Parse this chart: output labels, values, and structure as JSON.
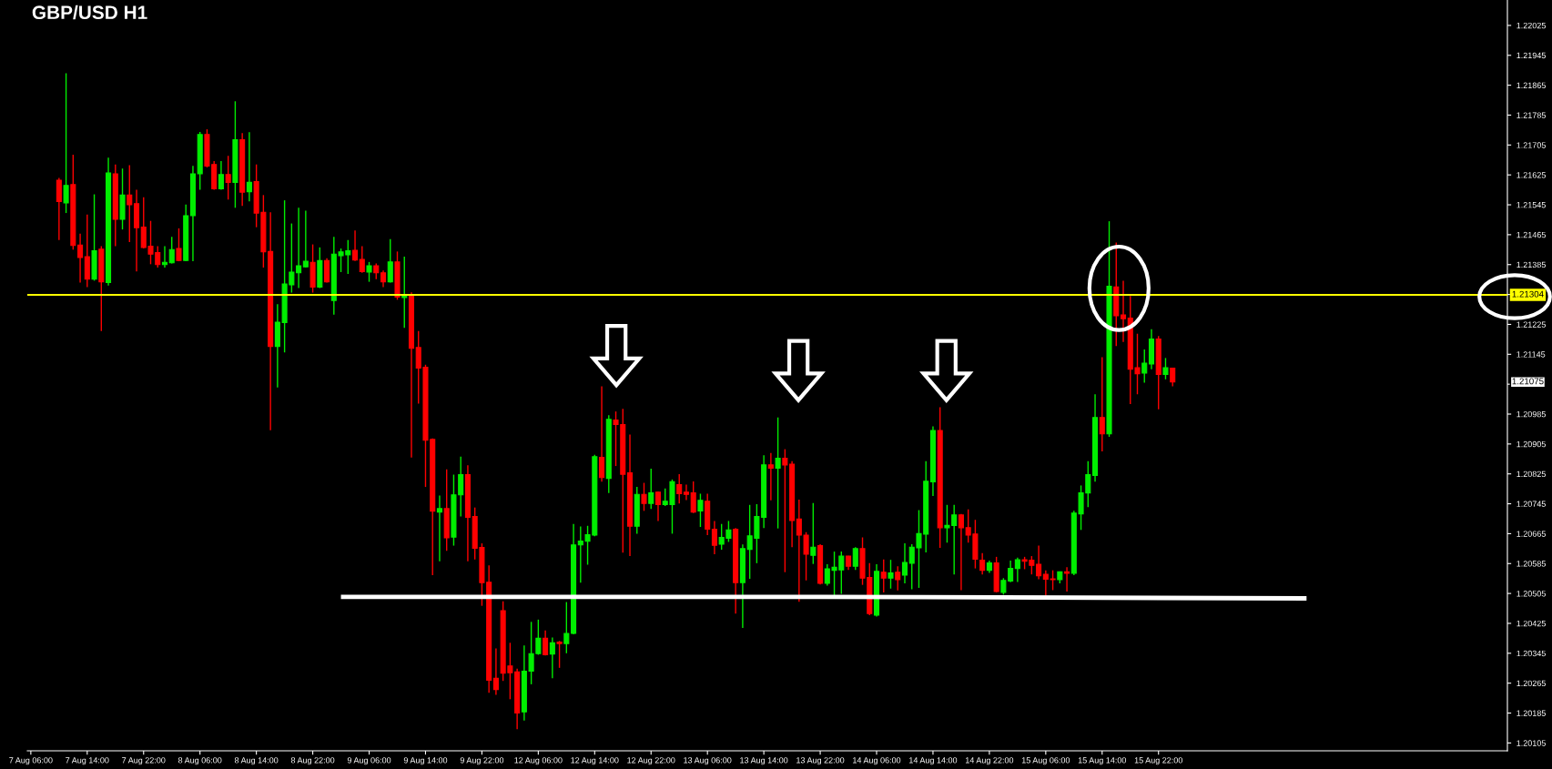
{
  "chart_data": {
    "type": "candlestick",
    "title": "GBP/USD H1",
    "categories": [
      "7 Aug 06:00",
      null,
      null,
      null,
      null,
      null,
      null,
      null,
      "7 Aug 14:00",
      null,
      null,
      null,
      null,
      null,
      null,
      null,
      "7 Aug 22:00",
      null,
      null,
      null,
      null,
      null,
      null,
      null,
      "8 Aug 06:00",
      null,
      null,
      null,
      null,
      null,
      null,
      null,
      "8 Aug 14:00",
      null,
      null,
      null,
      null,
      null,
      null,
      null,
      "8 Aug 22:00",
      null,
      null,
      null,
      null,
      null,
      null,
      null,
      "9 Aug 06:00",
      null,
      null,
      null,
      null,
      null,
      null,
      null,
      "9 Aug 14:00",
      null,
      null,
      null,
      null,
      null,
      null,
      null,
      "9 Aug 22:00",
      null,
      null,
      null,
      null,
      null,
      null,
      null,
      "12 Aug 06:00",
      null,
      null,
      null,
      null,
      null,
      null,
      null,
      "12 Aug 14:00",
      null,
      null,
      null,
      null,
      null,
      null,
      null,
      "12 Aug 22:00",
      null,
      null,
      null,
      null,
      null,
      null,
      null,
      "13 Aug 06:00",
      null,
      null,
      null,
      null,
      null,
      null,
      null,
      "13 Aug 14:00",
      null,
      null,
      null,
      null,
      null,
      null,
      null,
      "13 Aug 22:00",
      null,
      null,
      null,
      null,
      null,
      null,
      null,
      "14 Aug 06:00",
      null,
      null,
      null,
      null,
      null,
      null,
      null,
      "14 Aug 14:00",
      null,
      null,
      null,
      null,
      null,
      null,
      null,
      "14 Aug 22:00",
      null,
      null,
      null,
      null,
      null,
      null,
      null,
      "15 Aug 06:00",
      null,
      null,
      null,
      null,
      null,
      null,
      null,
      "15 Aug 14:00",
      null,
      null,
      null,
      null,
      null,
      null,
      null,
      "15 Aug 22:00",
      null,
      null,
      null,
      null,
      null,
      null,
      null,
      null,
      null,
      null,
      null,
      null,
      null,
      null,
      null,
      null,
      null,
      null,
      null,
      null,
      null,
      null,
      null,
      null,
      null,
      null,
      null,
      null,
      null,
      null,
      null,
      null,
      null,
      null,
      null,
      null,
      null,
      null,
      null,
      null,
      null,
      null,
      null,
      null,
      null,
      null,
      null,
      null,
      null
    ],
    "ohlc": [
      null,
      null,
      null,
      null,
      [
        1.21611,
        1.21617,
        1.21451,
        1.21554
      ],
      [
        1.2155,
        1.21897,
        1.21523,
        1.21597
      ],
      [
        1.21599,
        1.21679,
        1.21425,
        1.21436
      ],
      [
        1.21437,
        1.21468,
        1.21337,
        1.21404
      ],
      [
        1.21406,
        1.21519,
        1.21325,
        1.21346
      ],
      [
        1.21346,
        1.21573,
        1.21342,
        1.21422
      ],
      [
        1.21426,
        1.21434,
        1.21207,
        1.21339
      ],
      [
        1.21337,
        1.21671,
        1.21329,
        1.2163
      ],
      [
        1.21628,
        1.21653,
        1.21434,
        1.21506
      ],
      [
        1.21506,
        1.21642,
        1.21479,
        1.21571
      ],
      [
        1.21571,
        1.21651,
        1.21445,
        1.21545
      ],
      [
        1.21548,
        1.21585,
        1.21367,
        1.21484
      ],
      [
        1.21485,
        1.21565,
        1.21428,
        1.21431
      ],
      [
        1.21434,
        1.21502,
        1.21386,
        1.21413
      ],
      [
        1.21417,
        1.21434,
        1.21377,
        1.21385
      ],
      [
        1.21385,
        1.21434,
        1.21377,
        1.21391
      ],
      [
        1.2139,
        1.21459,
        1.21388,
        1.21425
      ],
      [
        1.21428,
        1.21482,
        1.21394,
        1.21396
      ],
      [
        1.21396,
        1.21546,
        1.21394,
        1.21516
      ],
      [
        1.21516,
        1.21649,
        1.21394,
        1.21628
      ],
      [
        1.21628,
        1.2174,
        1.21585,
        1.21733
      ],
      [
        1.21733,
        1.21747,
        1.21645,
        1.21649
      ],
      [
        1.21653,
        1.21662,
        1.21585,
        1.21588
      ],
      [
        1.21588,
        1.21662,
        1.21585,
        1.21626
      ],
      [
        1.21626,
        1.21676,
        1.21559,
        1.21605
      ],
      [
        1.21605,
        1.21822,
        1.21537,
        1.21719
      ],
      [
        1.21719,
        1.21737,
        1.21542,
        1.21579
      ],
      [
        1.2158,
        1.21739,
        1.21554,
        1.21605
      ],
      [
        1.21607,
        1.21653,
        1.21485,
        1.21523
      ],
      [
        1.21525,
        1.21571,
        1.21377,
        1.21419
      ],
      [
        1.2142,
        1.21525,
        1.20942,
        1.21166
      ],
      [
        1.21166,
        1.21279,
        1.21056,
        1.21231
      ],
      [
        1.2123,
        1.21557,
        1.2115,
        1.21333
      ],
      [
        1.21331,
        1.21495,
        1.2131,
        1.21365
      ],
      [
        1.21363,
        1.21537,
        1.21322,
        1.21382
      ],
      [
        1.21379,
        1.21529,
        1.21377,
        1.21394
      ],
      [
        1.21391,
        1.21439,
        1.2131,
        1.21325
      ],
      [
        1.21325,
        1.21431,
        1.21322,
        1.21396
      ],
      [
        1.21396,
        1.21402,
        1.21337,
        1.21339
      ],
      [
        1.21289,
        1.21459,
        1.21251,
        1.21413
      ],
      [
        1.21409,
        1.21428,
        1.21365,
        1.21419
      ],
      [
        1.21411,
        1.21451,
        1.2136,
        1.21422
      ],
      [
        1.21423,
        1.21476,
        1.21395,
        1.21397
      ],
      [
        1.21399,
        1.21434,
        1.21363,
        1.21366
      ],
      [
        1.21365,
        1.21392,
        1.21339,
        1.21382
      ],
      [
        1.21382,
        1.21388,
        1.21346,
        1.21363
      ],
      [
        1.21363,
        1.21369,
        1.21325,
        1.21339
      ],
      [
        1.21339,
        1.21453,
        1.21337,
        1.21392
      ],
      [
        1.21392,
        1.2142,
        1.21291,
        1.21298
      ],
      [
        1.21297,
        1.21406,
        1.21216,
        1.21303
      ],
      [
        1.21304,
        1.21311,
        1.20869,
        1.21161
      ],
      [
        1.21163,
        1.21207,
        1.21013,
        1.21108
      ],
      [
        1.2111,
        1.21117,
        1.2079,
        1.20915
      ],
      [
        1.20917,
        1.2092,
        1.20554,
        1.20725
      ],
      [
        1.20723,
        1.20767,
        1.20591,
        1.20732
      ],
      [
        1.20732,
        1.20837,
        1.20619,
        1.20654
      ],
      [
        1.20656,
        1.20823,
        1.20633,
        1.20769
      ],
      [
        1.20769,
        1.20871,
        1.20711,
        1.20823
      ],
      [
        1.20823,
        1.20848,
        1.20591,
        1.20709
      ],
      [
        1.20711,
        1.20735,
        1.20596,
        1.20626
      ],
      [
        1.20628,
        1.20639,
        1.20472,
        1.20534
      ],
      [
        1.20535,
        1.2058,
        1.20239,
        1.20273
      ],
      [
        1.20278,
        1.20358,
        1.20234,
        1.20248
      ],
      [
        1.20459,
        1.20484,
        1.20271,
        1.20292
      ],
      [
        1.20311,
        1.20373,
        1.20222,
        1.20293
      ],
      [
        1.20295,
        1.20304,
        1.20142,
        1.20185
      ],
      [
        1.20188,
        1.20366,
        1.20165,
        1.20297
      ],
      [
        1.20297,
        1.20429,
        1.20262,
        1.20344
      ],
      [
        1.20344,
        1.20435,
        1.20341,
        1.20385
      ],
      [
        1.20385,
        1.20406,
        1.20339,
        1.20341
      ],
      [
        1.20343,
        1.20387,
        1.20278,
        1.20373
      ],
      [
        1.20375,
        1.20378,
        1.20306,
        1.20371
      ],
      [
        1.20371,
        1.20482,
        1.20345,
        1.20398
      ],
      [
        1.20398,
        1.20691,
        1.20396,
        1.20635
      ],
      [
        1.20635,
        1.20684,
        1.20534,
        1.20645
      ],
      [
        1.20645,
        1.20686,
        1.20582,
        1.20662
      ],
      [
        1.20661,
        1.20876,
        1.20658,
        1.20871
      ],
      [
        1.20869,
        1.21059,
        1.20804,
        1.20815
      ],
      [
        1.20813,
        1.20982,
        1.20774,
        1.20971
      ],
      [
        1.20969,
        1.20992,
        1.20846,
        1.20957
      ],
      [
        1.20957,
        1.20999,
        1.20614,
        1.20824
      ],
      [
        1.20828,
        1.2093,
        1.20605,
        1.20685
      ],
      [
        1.20685,
        1.2079,
        1.20665,
        1.2077
      ],
      [
        1.2077,
        1.20801,
        1.20726,
        1.20746
      ],
      [
        1.20746,
        1.20839,
        1.20731,
        1.20774
      ],
      [
        1.20776,
        1.20778,
        1.20699,
        1.20743
      ],
      [
        1.20743,
        1.20786,
        1.20739,
        1.20752
      ],
      [
        1.20743,
        1.2081,
        1.20665,
        1.20804
      ],
      [
        1.20796,
        1.20824,
        1.20746,
        1.20772
      ],
      [
        1.20776,
        1.20796,
        1.20755,
        1.2077
      ],
      [
        1.20774,
        1.20805,
        1.2072,
        1.20723
      ],
      [
        1.20726,
        1.20772,
        1.20683,
        1.20754
      ],
      [
        1.20752,
        1.20772,
        1.20661,
        1.20677
      ],
      [
        1.20677,
        1.20699,
        1.2061,
        1.20634
      ],
      [
        1.20637,
        1.20691,
        1.20622,
        1.20655
      ],
      [
        1.20653,
        1.20699,
        1.20643,
        1.20675
      ],
      [
        1.20677,
        1.2068,
        1.20451,
        1.20534
      ],
      [
        1.20534,
        1.20636,
        1.20413,
        1.20625
      ],
      [
        1.20623,
        1.20742,
        1.20544,
        1.20659
      ],
      [
        1.20653,
        1.20744,
        1.20586,
        1.20711
      ],
      [
        1.20709,
        1.20875,
        1.2068,
        1.20849
      ],
      [
        1.20849,
        1.20881,
        1.20754,
        1.2084
      ],
      [
        1.2084,
        1.20976,
        1.20679,
        1.20867
      ],
      [
        1.20867,
        1.20891,
        1.20562,
        1.20849
      ],
      [
        1.20851,
        1.20859,
        1.20629,
        1.207
      ],
      [
        1.20704,
        1.20756,
        1.20483,
        1.20661
      ],
      [
        1.20661,
        1.20669,
        1.2054,
        1.2061
      ],
      [
        1.20607,
        1.20747,
        1.20584,
        1.20629
      ],
      [
        1.20633,
        1.20637,
        1.20529,
        1.20532
      ],
      [
        1.20532,
        1.20583,
        1.20526,
        1.20571
      ],
      [
        1.20567,
        1.20617,
        1.205,
        1.20575
      ],
      [
        1.20568,
        1.20617,
        1.20504,
        1.20605
      ],
      [
        1.20605,
        1.20606,
        1.20568,
        1.20578
      ],
      [
        1.20578,
        1.20629,
        1.20568,
        1.20625
      ],
      [
        1.20625,
        1.20655,
        1.20528,
        1.20546
      ],
      [
        1.20548,
        1.20586,
        1.20447,
        1.20451
      ],
      [
        1.20447,
        1.20583,
        1.20443,
        1.20564
      ],
      [
        1.20562,
        1.20596,
        1.20508,
        1.20546
      ],
      [
        1.20546,
        1.20595,
        1.20518,
        1.2056
      ],
      [
        1.20562,
        1.20578,
        1.20513,
        1.20542
      ],
      [
        1.20554,
        1.20639,
        1.20532,
        1.20588
      ],
      [
        1.20586,
        1.20637,
        1.20516,
        1.20629
      ],
      [
        1.20627,
        1.20728,
        1.2052,
        1.20665
      ],
      [
        1.20664,
        1.20859,
        1.20615,
        1.20805
      ],
      [
        1.20804,
        1.20952,
        1.20766,
        1.20941
      ],
      [
        1.20941,
        1.21003,
        1.20627,
        1.20681
      ],
      [
        1.20681,
        1.20742,
        1.20641,
        1.20687
      ],
      [
        1.20687,
        1.20742,
        1.20556,
        1.20715
      ],
      [
        1.20715,
        1.20718,
        1.20514,
        1.20681
      ],
      [
        1.20681,
        1.2073,
        1.20641,
        1.20661
      ],
      [
        1.20664,
        1.20702,
        1.20572,
        1.20597
      ],
      [
        1.20594,
        1.20613,
        1.20556,
        1.20567
      ],
      [
        1.20567,
        1.20593,
        1.2056,
        1.20587
      ],
      [
        1.20587,
        1.20603,
        1.20508,
        1.2051
      ],
      [
        1.20508,
        1.20546,
        1.20502,
        1.2054
      ],
      [
        1.20538,
        1.20593,
        1.20535,
        1.20572
      ],
      [
        1.20572,
        1.20601,
        1.20536,
        1.20595
      ],
      [
        1.20595,
        1.20603,
        1.2057,
        1.20591
      ],
      [
        1.20594,
        1.20605,
        1.20556,
        1.2058
      ],
      [
        1.20583,
        1.20633,
        1.20543,
        1.20552
      ],
      [
        1.20556,
        1.20567,
        1.20497,
        1.20543
      ],
      [
        1.20544,
        1.20567,
        1.20514,
        1.20542
      ],
      [
        1.20542,
        1.20564,
        1.20532,
        1.20563
      ],
      [
        1.20563,
        1.20575,
        1.2051,
        1.20559
      ],
      [
        1.20559,
        1.20726,
        1.20554,
        1.2072
      ],
      [
        1.20718,
        1.20794,
        1.20675,
        1.20774
      ],
      [
        1.20774,
        1.20859,
        1.20736,
        1.20823
      ],
      [
        1.20821,
        1.21038,
        1.20804,
        1.20976
      ],
      [
        1.20976,
        1.21137,
        1.20885,
        1.20932
      ],
      [
        1.20932,
        1.21501,
        1.20924,
        1.21327
      ],
      [
        1.21325,
        1.21444,
        1.21167,
        1.21248
      ],
      [
        1.2125,
        1.21342,
        1.21178,
        1.2124
      ],
      [
        1.21242,
        1.21301,
        1.21012,
        1.21105
      ],
      [
        1.21109,
        1.212,
        1.21038,
        1.21093
      ],
      [
        1.21095,
        1.21158,
        1.21069,
        1.21121
      ],
      [
        1.21119,
        1.21212,
        1.21105,
        1.21186
      ],
      [
        1.21186,
        1.21194,
        1.20998,
        1.21091
      ],
      [
        1.21091,
        1.21135,
        1.21078,
        1.21109
      ],
      [
        1.21108,
        1.21109,
        1.21059,
        1.21071
      ],
      null,
      null,
      null,
      null,
      null,
      null,
      null,
      null,
      null,
      null,
      null,
      null,
      null,
      null,
      null,
      null,
      null,
      null,
      null,
      null,
      null,
      null,
      null,
      null,
      null,
      null,
      null,
      null,
      null,
      null,
      null,
      null,
      null,
      null,
      null,
      null,
      null,
      null,
      null,
      null,
      null,
      null,
      null,
      null,
      null,
      null,
      null
    ],
    "colors": [
      null,
      null,
      null,
      null,
      "#ff0000",
      "#00ee00",
      "#ff0000",
      "#ff0000",
      "#ff0000",
      "#00ee00",
      "#ff0000",
      "#00ee00",
      "#ff0000",
      "#00ee00",
      "#ff0000",
      "#ff0000",
      "#ff0000",
      "#ff0000",
      "#ff0000",
      "#00ee00",
      "#00ee00",
      "#ff0000",
      "#00ee00",
      "#00ee00",
      "#00ee00",
      "#ff0000",
      "#ff0000",
      "#00ee00",
      "#ff0000",
      "#00ee00",
      "#ff0000",
      "#00ee00",
      "#ff0000",
      "#ff0000",
      "#ff0000",
      "#00ee00",
      "#00ee00",
      "#00ee00",
      "#00ee00",
      "#00ee00",
      "#ff0000",
      "#00ee00",
      "#ff0000",
      "#00ee00",
      "#00ee00",
      "#00ee00",
      "#ff0000",
      "#ff0000",
      "#00ee00",
      "#ff0000",
      "#ff0000",
      "#00ee00",
      "#ff0000",
      "#00ee00",
      "#ff0000",
      "#ff0000",
      "#ff0000",
      "#ff0000",
      "#00ee00",
      "#ff0000",
      "#00ee00",
      "#00ee00",
      "#ff0000",
      "#ff0000",
      "#ff0000",
      "#ff0000",
      "#ff0000",
      "#ff0000",
      "#ff0000",
      "#ff0000",
      "#00ee00",
      "#00ee00",
      "#00ee00",
      "#ff0000",
      "#00ee00",
      "#ff0000",
      "#00ee00",
      "#00ee00",
      "#00ee00",
      "#00ee00",
      "#00ee00",
      "#ff0000",
      "#00ee00",
      "#ff0000",
      "#ff0000",
      "#ff0000",
      "#00ee00",
      "#ff0000",
      "#00ee00",
      "#ff0000",
      "#00ee00",
      "#00ee00",
      "#ff0000",
      "#ff0000",
      "#ff0000",
      "#00ee00",
      "#ff0000",
      "#ff0000",
      "#00ee00",
      "#00ee00",
      "#ff0000",
      "#00ee00",
      "#00ee00",
      "#00ee00",
      "#00ee00",
      "#ff0000",
      "#00ee00",
      "#ff0000",
      "#ff0000",
      "#ff0000",
      "#ff0000",
      "#00ee00",
      "#ff0000",
      "#00ee00",
      "#00ee00",
      "#00ee00",
      "#ff0000",
      "#00ee00",
      "#ff0000",
      "#ff0000",
      "#00ee00",
      "#ff0000",
      "#00ee00",
      "#ff0000",
      "#00ee00",
      "#00ee00",
      "#00ee00",
      "#00ee00",
      "#00ee00",
      "#ff0000",
      "#00ee00",
      "#00ee00",
      "#ff0000",
      "#ff0000",
      "#ff0000",
      "#ff0000",
      "#00ee00",
      "#ff0000",
      "#00ee00",
      "#00ee00",
      "#00ee00",
      "#ff0000",
      "#ff0000",
      "#ff0000",
      "#ff0000",
      "#ff0000",
      "#00ee00",
      "#ff0000",
      "#00ee00",
      "#00ee00",
      "#00ee00",
      "#00ee00",
      "#ff0000",
      "#00ee00",
      "#ff0000",
      "#ff0000",
      "#ff0000",
      "#ff0000",
      "#00ee00",
      "#00ee00",
      "#ff0000",
      "#00ee00",
      "#ff0000",
      null,
      null,
      null,
      null,
      null,
      null,
      null,
      null,
      null,
      null,
      null,
      null,
      null,
      null,
      null,
      null,
      null,
      null,
      null,
      null,
      null,
      null,
      null,
      null,
      null,
      null,
      null,
      null,
      null,
      null,
      null,
      null,
      null,
      null,
      null,
      null,
      null,
      null,
      null,
      null,
      null,
      null,
      null,
      null,
      null,
      null,
      null
    ],
    "series": [
      {
        "type": "line",
        "color": "#ffffff",
        "values": [
          null,
          null,
          null,
          null,
          null,
          null,
          null,
          null,
          null,
          null,
          null,
          null,
          null,
          null,
          null,
          null,
          null,
          null,
          null,
          null,
          null,
          null,
          null,
          null,
          null,
          null,
          null,
          null,
          null,
          null,
          null,
          null,
          null,
          null,
          null,
          null,
          null,
          null,
          null,
          null,
          null,
          null,
          null,
          null,
          1.20496,
          null,
          null,
          null,
          null,
          null,
          null,
          null,
          null,
          null,
          null,
          null,
          null,
          null,
          null,
          null,
          null,
          null,
          null,
          null,
          null,
          null,
          null,
          null,
          null,
          null,
          null,
          null,
          null,
          null,
          null,
          null,
          null,
          null,
          null,
          null,
          null,
          null,
          null,
          null,
          null,
          null,
          null,
          null,
          null,
          null,
          null,
          null,
          null,
          null,
          null,
          null,
          null,
          null,
          null,
          null,
          null,
          null,
          null,
          null,
          null,
          null,
          null,
          null,
          null,
          null,
          null,
          null,
          1.20496,
          null,
          null,
          null,
          null,
          null,
          null,
          null,
          null,
          null,
          null,
          null,
          null,
          null,
          null,
          null,
          null,
          null,
          null,
          null,
          null,
          null,
          null,
          null,
          null,
          null,
          null,
          null,
          null,
          null,
          null,
          null,
          null,
          null,
          null,
          null,
          null,
          null,
          null,
          null,
          null,
          null,
          null,
          null,
          null,
          null,
          null,
          null,
          null,
          null,
          null,
          null,
          null,
          null,
          null,
          null,
          null,
          null,
          null,
          null,
          null,
          null,
          null,
          null,
          null,
          null,
          null,
          null,
          null,
          1.20492,
          null,
          null,
          null,
          null,
          null,
          null,
          null,
          null,
          null,
          null,
          null,
          null,
          null,
          null,
          null,
          null,
          null,
          null,
          null,
          null,
          null,
          null,
          null,
          null,
          null,
          null,
          null,
          null
        ]
      }
    ],
    "ylim": [
      1.20084,
      1.22093
    ],
    "yticks": [
      1.20105,
      1.20185,
      1.20265,
      1.20345,
      1.20425,
      1.20505,
      1.20585,
      1.20665,
      1.20745,
      1.20825,
      1.20905,
      1.20985,
      {
        "value": 1.21065,
        "label": null
      },
      1.21145,
      1.21225,
      {
        "value": 1.21305,
        "label": null
      },
      1.21385,
      1.21465,
      1.21545,
      1.21625,
      1.21705,
      1.21785,
      1.21865,
      1.21945,
      1.22025
    ],
    "ref_lines": [
      {
        "axis": "y",
        "value": 1.21304,
        "label": "1.21304",
        "color": "#ffff00",
        "line_style": "solid"
      }
    ],
    "annotations": [
      "1.21075"
    ],
    "grid": false
  }
}
